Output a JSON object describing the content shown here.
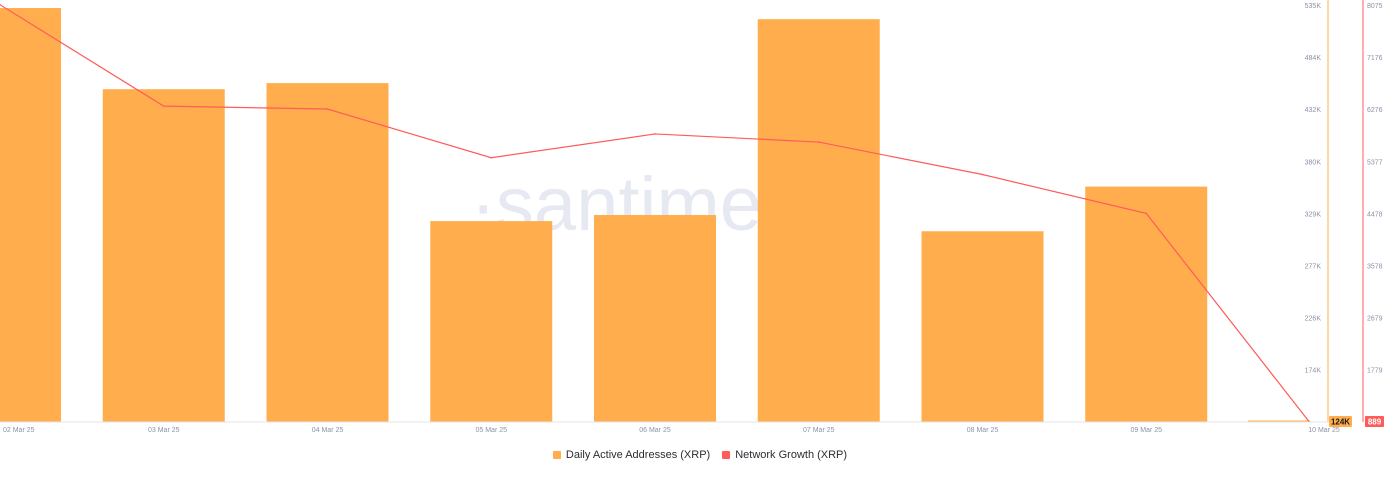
{
  "chart_data": {
    "type": "bar",
    "watermark": "·santiment",
    "categories": [
      "02 Mar 25",
      "03 Mar 25",
      "04 Mar 25",
      "05 Mar 25",
      "06 Mar 25",
      "07 Mar 25",
      "08 Mar 25",
      "09 Mar 25",
      "10 Mar 25"
    ],
    "series": [
      {
        "name": "Daily Active Addresses (XRP)",
        "kind": "bar",
        "axis": "left-of-right-pair",
        "color": "#ffad4d",
        "values": [
          532000,
          452000,
          458000,
          322000,
          328000,
          521000,
          312000,
          356000,
          124000
        ]
      },
      {
        "name": "Network Growth (XRP)",
        "kind": "line",
        "axis": "far-right",
        "color": "#ff5b5b",
        "values": [
          8080,
          6330,
          6280,
          5440,
          5850,
          5710,
          5150,
          4480,
          889
        ]
      }
    ],
    "axes": {
      "primary": {
        "ticks": [
          "535K",
          "484K",
          "432K",
          "380K",
          "329K",
          "277K",
          "226K",
          "174K"
        ],
        "range": [
          124000,
          535000
        ],
        "current_badge": "124K",
        "color": "#ffad4d"
      },
      "secondary": {
        "ticks": [
          "8075",
          "7176",
          "6276",
          "5377",
          "4478",
          "3578",
          "2679",
          "1779"
        ],
        "range": [
          880,
          8075
        ],
        "current_badge": "889",
        "color": "#ff5b5b"
      }
    },
    "legend_position": "bottom-center",
    "grid": false
  }
}
